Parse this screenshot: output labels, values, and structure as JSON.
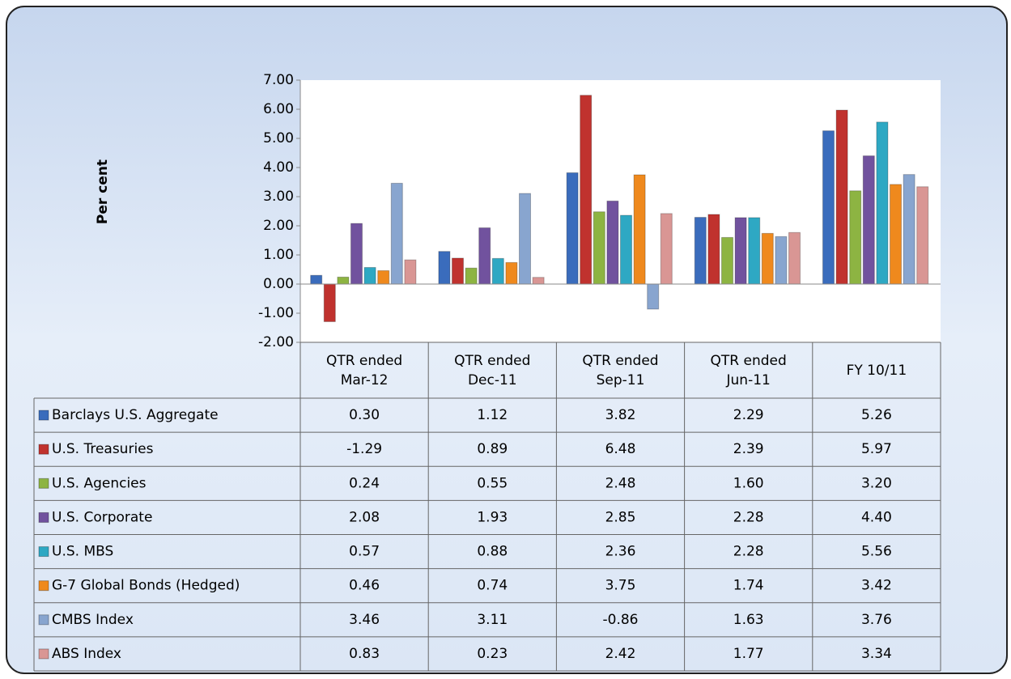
{
  "chart_data": {
    "type": "bar",
    "y_axis_label": "Per cent",
    "categories": [
      "QTR ended Mar-12",
      "QTR ended Dec-11",
      "QTR ended Sep-11",
      "QTR ended Jun-11",
      "FY 10/11"
    ],
    "ylim": [
      -2,
      7
    ],
    "yticks": [
      {
        "value": -2,
        "label": "-2.00"
      },
      {
        "value": -1,
        "label": "-1.00"
      },
      {
        "value": 0,
        "label": "0.00"
      },
      {
        "value": 1,
        "label": "1.00"
      },
      {
        "value": 2,
        "label": "2.00"
      },
      {
        "value": 3,
        "label": "3.00"
      },
      {
        "value": 4,
        "label": "4.00"
      },
      {
        "value": 5,
        "label": "5.00"
      },
      {
        "value": 6,
        "label": "6.00"
      },
      {
        "value": 7,
        "label": "7.00"
      }
    ],
    "series": [
      {
        "name": "Barclays U.S. Aggregate",
        "color": "#3a6cbc",
        "values": [
          0.3,
          1.12,
          3.82,
          2.29,
          5.26
        ],
        "value_labels": [
          "0.30",
          "1.12",
          "3.82",
          "2.29",
          "5.26"
        ]
      },
      {
        "name": "U.S. Treasuries",
        "color": "#c0322e",
        "values": [
          -1.29,
          0.89,
          6.48,
          2.39,
          5.97
        ],
        "value_labels": [
          "-1.29",
          "0.89",
          "6.48",
          "2.39",
          "5.97"
        ]
      },
      {
        "name": "U.S. Agencies",
        "color": "#8db442",
        "values": [
          0.24,
          0.55,
          2.48,
          1.6,
          3.2
        ],
        "value_labels": [
          "0.24",
          "0.55",
          "2.48",
          "1.60",
          "3.20"
        ]
      },
      {
        "name": "U.S. Corporate",
        "color": "#71529e",
        "values": [
          2.08,
          1.93,
          2.85,
          2.28,
          4.4
        ],
        "value_labels": [
          "2.08",
          "1.93",
          "2.85",
          "2.28",
          "4.40"
        ]
      },
      {
        "name": "U.S. MBS",
        "color": "#2ea8c3",
        "values": [
          0.57,
          0.88,
          2.36,
          2.28,
          5.56
        ],
        "value_labels": [
          "0.57",
          "0.88",
          "2.36",
          "2.28",
          "5.56"
        ]
      },
      {
        "name": "G-7 Global Bonds (Hedged)",
        "color": "#ef891d",
        "values": [
          0.46,
          0.74,
          3.75,
          1.74,
          3.42
        ],
        "value_labels": [
          "0.46",
          "0.74",
          "3.75",
          "1.74",
          "3.42"
        ]
      },
      {
        "name": "CMBS Index",
        "color": "#88a5cf",
        "values": [
          3.46,
          3.11,
          -0.86,
          1.63,
          3.76
        ],
        "value_labels": [
          "3.46",
          "3.11",
          "-0.86",
          "1.63",
          "3.76"
        ]
      },
      {
        "name": "ABS Index",
        "color": "#d99694",
        "values": [
          0.83,
          0.23,
          2.42,
          1.77,
          3.34
        ],
        "value_labels": [
          "0.83",
          "0.23",
          "2.42",
          "1.77",
          "3.34"
        ]
      }
    ]
  }
}
